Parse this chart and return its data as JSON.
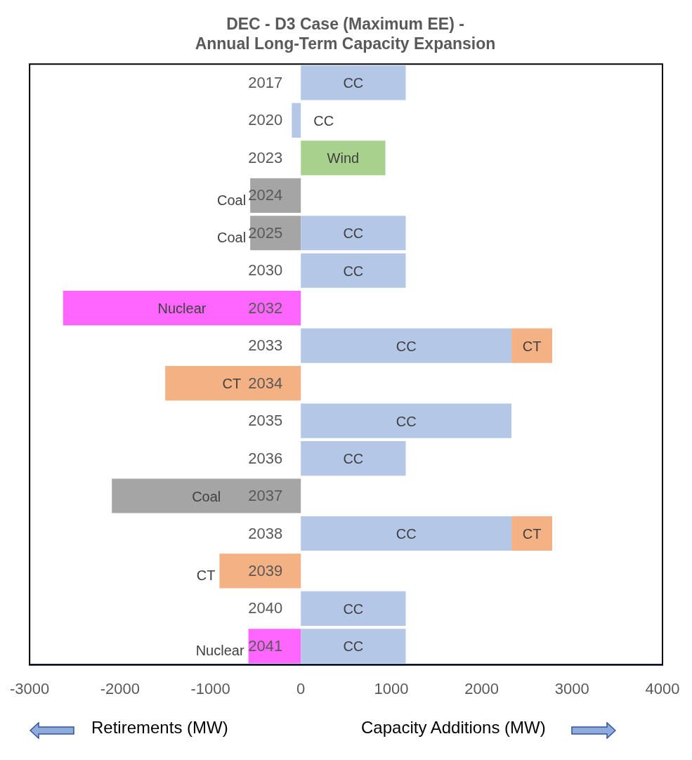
{
  "chart_data": {
    "type": "bar",
    "orientation": "horizontal",
    "stacked": true,
    "title": "DEC - D3 Case (Maximum EE) -\nAnnual Long-Term Capacity Expansion",
    "categories": [
      "2017",
      "2020",
      "2023",
      "2024",
      "2025",
      "2030",
      "2032",
      "2033",
      "2034",
      "2035",
      "2036",
      "2037",
      "2038",
      "2039",
      "2040",
      "2041"
    ],
    "series": [
      {
        "name": "CC",
        "color": "#b4c7e7",
        "values": [
          1160,
          -100,
          null,
          null,
          1160,
          1160,
          null,
          2330,
          null,
          2330,
          1160,
          null,
          2330,
          null,
          1160,
          1160
        ]
      },
      {
        "name": "Wind",
        "color": "#a9d18e",
        "values": [
          null,
          null,
          935,
          null,
          null,
          null,
          null,
          null,
          null,
          null,
          null,
          null,
          null,
          null,
          null,
          null
        ]
      },
      {
        "name": "Coal",
        "color": "#a5a5a5",
        "values": [
          null,
          null,
          null,
          -560,
          -560,
          null,
          null,
          null,
          null,
          null,
          null,
          -2090,
          null,
          null,
          null,
          null
        ]
      },
      {
        "name": "Nuclear",
        "color": "#ff66ff",
        "values": [
          null,
          null,
          null,
          null,
          null,
          null,
          -2630,
          null,
          null,
          null,
          null,
          null,
          null,
          null,
          null,
          -580
        ]
      },
      {
        "name": "CT",
        "color": "#f4b183",
        "values": [
          null,
          null,
          null,
          null,
          null,
          null,
          null,
          450,
          -1500,
          null,
          null,
          null,
          450,
          -900,
          null,
          null
        ]
      }
    ],
    "xlim": [
      -3000,
      4000
    ],
    "xticks": [
      -3000,
      -2000,
      -1000,
      0,
      1000,
      2000,
      3000,
      4000
    ],
    "grid": false,
    "legend": false,
    "annotations": [
      "Retirements (MW)",
      "Capacity Additions (MW)"
    ]
  }
}
